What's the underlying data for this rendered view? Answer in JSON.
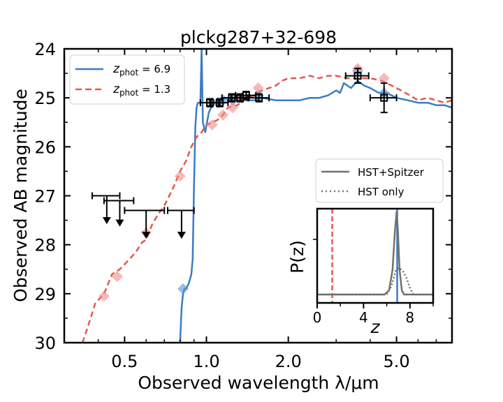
{
  "chart_data": {
    "type": "line",
    "title": "plckg287+32-698",
    "xlabel": "Observed wavelength λ/μm",
    "ylabel": "Observed AB magnitude",
    "xscale": "log",
    "xlim": [
      0.3,
      8.0
    ],
    "ylim": [
      30,
      24
    ],
    "x_ticks": [
      {
        "value": 0.5,
        "label": "0.5"
      },
      {
        "value": 1.0,
        "label": "1.0"
      },
      {
        "value": 2.0,
        "label": "2.0"
      },
      {
        "value": 5.0,
        "label": "5.0"
      }
    ],
    "y_ticks": [
      {
        "value": 24,
        "label": "24"
      },
      {
        "value": 25,
        "label": "25"
      },
      {
        "value": 26,
        "label": "26"
      },
      {
        "value": 27,
        "label": "27"
      },
      {
        "value": 28,
        "label": "28"
      },
      {
        "value": 29,
        "label": "29"
      },
      {
        "value": 30,
        "label": "30"
      }
    ],
    "legend": {
      "position": "top-left",
      "entries": [
        {
          "name": "z_phot",
          "prefix": "z",
          "sub": "phot",
          "text": " = 6.9",
          "color": "#3a7cc4",
          "style": "solid"
        },
        {
          "name": "z_phot",
          "prefix": "z",
          "sub": "phot",
          "text": " = 1.3",
          "color": "#e8564e",
          "style": "dashed"
        }
      ]
    },
    "series": [
      {
        "name": "z_phot = 6.9 template",
        "color": "#3a7cc4",
        "style": "solid",
        "x": [
          0.8,
          0.81,
          0.82,
          0.83,
          0.84,
          0.85,
          0.86,
          0.87,
          0.88,
          0.89,
          0.9,
          0.91,
          0.92,
          0.93,
          0.94,
          0.95,
          0.96,
          0.97,
          0.99,
          1.02,
          1.05,
          1.1,
          1.2,
          1.3,
          1.4,
          1.5,
          1.6,
          1.8,
          2.0,
          2.2,
          2.4,
          2.6,
          2.8,
          2.9,
          3.0,
          3.1,
          3.2,
          3.4,
          3.6,
          3.8,
          4.0,
          4.3,
          4.6,
          5.0,
          5.5,
          6.0,
          6.5,
          7.0,
          7.5,
          8.0
        ],
        "y": [
          30.0,
          29.3,
          29.0,
          28.9,
          28.9,
          28.85,
          28.8,
          28.7,
          28.6,
          28.3,
          26.8,
          25.6,
          25.2,
          25.1,
          25.1,
          25.1,
          24.0,
          25.5,
          25.7,
          25.3,
          25.15,
          25.05,
          25.0,
          25.05,
          25.05,
          25.05,
          25.0,
          25.05,
          25.05,
          25.05,
          25.0,
          25.0,
          24.95,
          24.9,
          24.85,
          24.9,
          24.7,
          24.8,
          24.65,
          24.75,
          24.8,
          24.9,
          24.9,
          25.0,
          25.05,
          25.1,
          25.1,
          25.15,
          25.15,
          25.2
        ]
      },
      {
        "name": "z_phot = 1.3 template",
        "color": "#e8564e",
        "style": "dashed",
        "x": [
          0.35,
          0.37,
          0.39,
          0.42,
          0.45,
          0.48,
          0.5,
          0.52,
          0.55,
          0.58,
          0.6,
          0.63,
          0.66,
          0.7,
          0.73,
          0.76,
          0.8,
          0.84,
          0.88,
          0.92,
          0.96,
          1.0,
          1.05,
          1.1,
          1.15,
          1.2,
          1.3,
          1.4,
          1.5,
          1.6,
          1.7,
          1.8,
          1.9,
          2.0,
          2.2,
          2.4,
          2.6,
          2.8,
          3.0,
          3.3,
          3.6,
          4.0,
          4.4,
          4.8,
          5.2,
          5.6,
          6.0,
          6.5,
          7.0,
          7.5,
          8.0
        ],
        "y": [
          30.0,
          29.6,
          29.2,
          29.0,
          28.6,
          28.5,
          28.4,
          28.3,
          28.15,
          27.95,
          27.9,
          27.6,
          27.4,
          27.2,
          27.0,
          26.8,
          26.5,
          26.3,
          26.0,
          25.8,
          25.7,
          25.55,
          25.5,
          25.45,
          25.35,
          25.2,
          25.15,
          25.0,
          24.95,
          24.85,
          24.8,
          24.75,
          24.65,
          24.6,
          24.6,
          24.55,
          24.6,
          24.55,
          24.55,
          24.6,
          24.6,
          24.6,
          24.65,
          24.75,
          24.85,
          24.95,
          25.05,
          25.0,
          25.05,
          25.1,
          25.05
        ]
      }
    ],
    "model_points_z6p9": {
      "color": "#5b8fd1",
      "x": [
        0.82,
        1.05,
        1.1,
        1.15,
        1.25,
        1.35,
        1.55,
        3.6,
        4.5
      ],
      "y": [
        28.9,
        25.1,
        25.1,
        25.05,
        25.05,
        25.0,
        24.95,
        24.45,
        24.9
      ]
    },
    "model_points_z1p3": {
      "color": "#f08a84",
      "x": [
        0.42,
        0.47,
        0.6,
        0.8,
        1.05,
        1.15,
        1.25,
        1.35,
        1.55,
        3.6,
        4.5
      ],
      "y": [
        29.05,
        28.65,
        27.75,
        26.6,
        25.55,
        25.35,
        25.2,
        25.0,
        24.8,
        24.4,
        24.6
      ]
    },
    "observed_detections": {
      "x": [
        1.03,
        1.12,
        1.24,
        1.33,
        1.4,
        1.56,
        3.6,
        4.5
      ],
      "y": [
        25.1,
        25.1,
        25.0,
        25.0,
        24.95,
        25.0,
        24.55,
        25.0
      ],
      "xerr": [
        0.08,
        0.08,
        0.1,
        0.1,
        0.12,
        0.14,
        0.35,
        0.5
      ],
      "yerr": [
        0.08,
        0.08,
        0.08,
        0.08,
        0.08,
        0.08,
        0.15,
        0.3
      ]
    },
    "upper_limits": {
      "x": [
        0.43,
        0.48,
        0.6,
        0.81
      ],
      "y": [
        27.0,
        27.1,
        27.3,
        27.3
      ],
      "xerr": [
        0.05,
        0.06,
        0.1,
        0.09
      ],
      "arrow_to": [
        27.55,
        27.6,
        27.85,
        27.85
      ]
    },
    "inset": {
      "type": "line",
      "ylabel": "P(z)",
      "xlabel": "z",
      "xlim": [
        0,
        10
      ],
      "x_ticks": [
        {
          "value": 0,
          "label": "0"
        },
        {
          "value": 4,
          "label": "4"
        },
        {
          "value": 8,
          "label": "8"
        }
      ],
      "legend": {
        "position": "above",
        "entries": [
          {
            "label": "HST+Spitzer",
            "color": "#707070",
            "style": "solid"
          },
          {
            "label": "HST only",
            "color": "#707070",
            "style": "dotted"
          }
        ]
      },
      "series": [
        {
          "name": "HST+Spitzer",
          "style": "solid",
          "color": "#707070",
          "x": [
            0,
            5.8,
            6.2,
            6.5,
            6.7,
            6.85,
            6.95,
            7.1,
            7.3,
            7.5,
            8.0,
            10
          ],
          "y": [
            0,
            0,
            0.05,
            0.3,
            0.75,
            1.0,
            0.8,
            0.3,
            0.05,
            0,
            0,
            0
          ]
        },
        {
          "name": "HST only",
          "style": "dotted",
          "color": "#707070",
          "x": [
            0,
            6.0,
            6.4,
            6.8,
            7.1,
            7.4,
            7.7,
            8.0,
            8.3,
            10
          ],
          "y": [
            0,
            0,
            0.1,
            0.3,
            0.32,
            0.28,
            0.2,
            0.08,
            0,
            0
          ]
        }
      ],
      "markers": [
        {
          "name": "z_phot = 1.3",
          "value": 1.3,
          "color": "#e8564e",
          "style": "dashed"
        },
        {
          "name": "z_phot = 6.9",
          "value": 6.9,
          "color": "#3a7cc4",
          "style": "solid"
        }
      ]
    }
  }
}
